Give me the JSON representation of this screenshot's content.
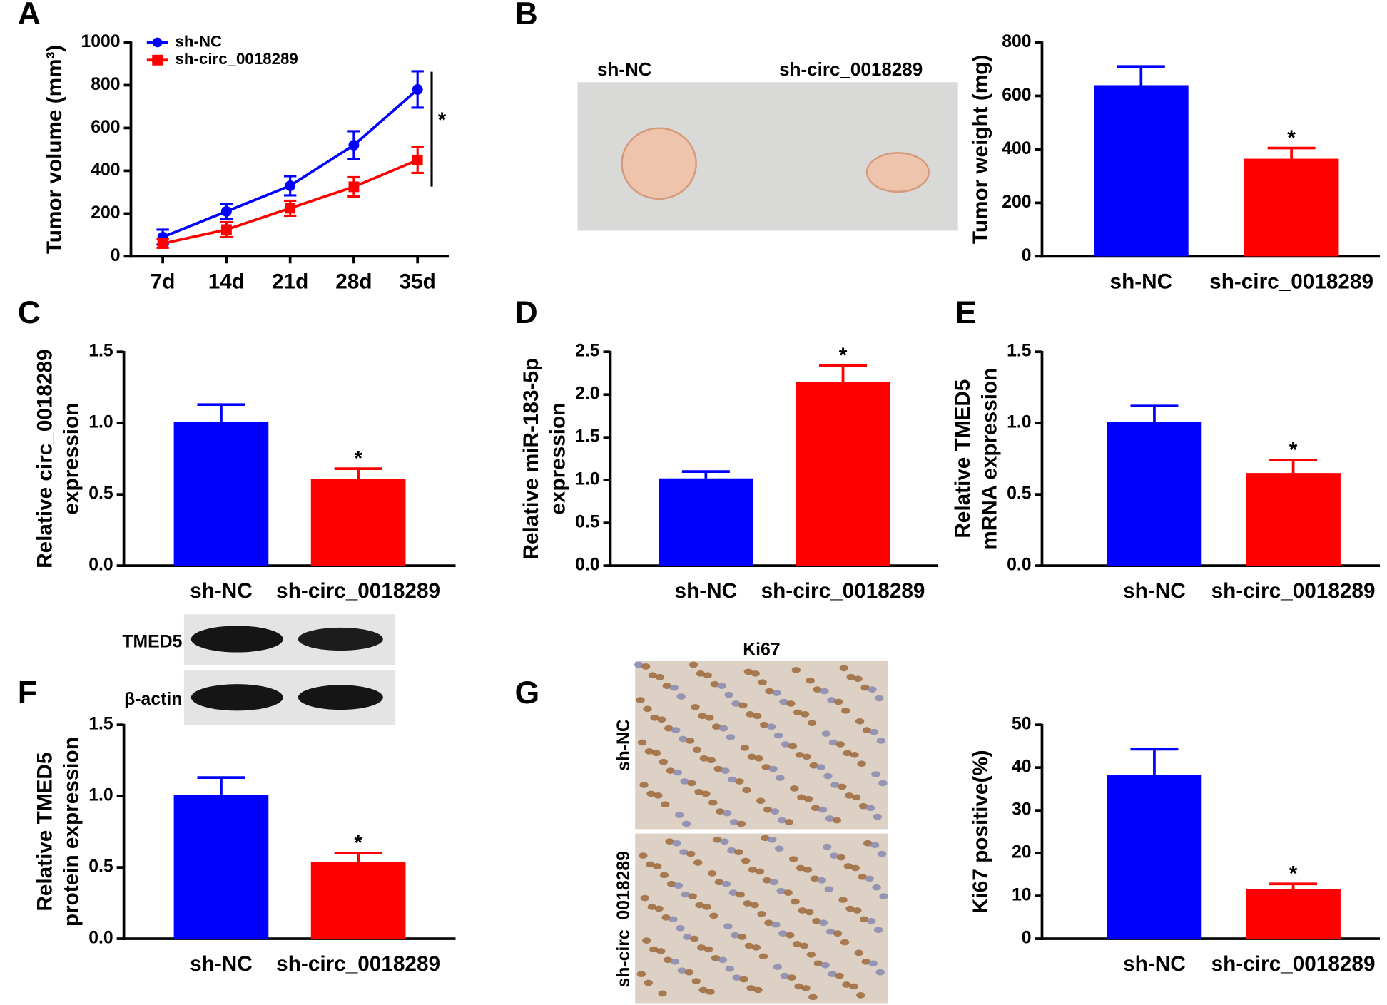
{
  "chart_data": [
    {
      "panel_label": "A",
      "type": "line",
      "ylabel": "Tumor volume (mm³)",
      "categories": [
        "7d",
        "14d",
        "21d",
        "28d",
        "35d"
      ],
      "series": [
        {
          "name": "sh-NC",
          "color": "#0000ff",
          "values": [
            90,
            210,
            330,
            520,
            780
          ],
          "errors": [
            35,
            35,
            45,
            65,
            85
          ]
        },
        {
          "name": "sh-circ_0018289",
          "color": "#ff0000",
          "values": [
            60,
            125,
            225,
            325,
            450
          ],
          "errors": [
            20,
            35,
            35,
            45,
            60
          ]
        }
      ],
      "ylim": [
        0,
        1000
      ],
      "yticks": [
        0,
        200,
        400,
        600,
        800,
        1000
      ],
      "annotation": "*",
      "legend": "top-left"
    },
    {
      "panel_label": "B",
      "type": "bar",
      "ylabel": "Tumor weight (mg)",
      "image_labels": [
        "sh-NC",
        "sh-circ_0018289"
      ],
      "categories": [
        "sh-NC",
        "sh-circ_0018289"
      ],
      "values": [
        640,
        365
      ],
      "errors": [
        70,
        40
      ],
      "colors": [
        "#0000ff",
        "#ff0000"
      ],
      "significance": [
        null,
        "*"
      ],
      "ylim": [
        0,
        800
      ],
      "yticks": [
        0,
        200,
        400,
        600,
        800
      ]
    },
    {
      "panel_label": "C",
      "type": "bar",
      "ylabel": [
        "Relative circ_0018289",
        "expression"
      ],
      "categories": [
        "sh-NC",
        "sh-circ_0018289"
      ],
      "values": [
        1.01,
        0.61
      ],
      "errors": [
        0.12,
        0.07
      ],
      "colors": [
        "#0000ff",
        "#ff0000"
      ],
      "significance": [
        null,
        "*"
      ],
      "ylim": [
        0,
        1.5
      ],
      "yticks": [
        {
          "value": 0,
          "label": "0.0"
        },
        {
          "value": 0.5,
          "label": "0.5"
        },
        {
          "value": 1,
          "label": "1.0"
        },
        {
          "value": 1.5,
          "label": "1.5"
        }
      ]
    },
    {
      "panel_label": "D",
      "type": "bar",
      "ylabel": [
        "Relative miR-183-5p",
        "expression"
      ],
      "categories": [
        "sh-NC",
        "sh-circ_0018289"
      ],
      "values": [
        1.02,
        2.15
      ],
      "errors": [
        0.08,
        0.19
      ],
      "colors": [
        "#0000ff",
        "#ff0000"
      ],
      "significance": [
        null,
        "*"
      ],
      "ylim": [
        0,
        2.5
      ],
      "yticks": [
        {
          "value": 0,
          "label": "0.0"
        },
        {
          "value": 0.5,
          "label": "0.5"
        },
        {
          "value": 1,
          "label": "1.0"
        },
        {
          "value": 1.5,
          "label": "1.5"
        },
        {
          "value": 2,
          "label": "2.0"
        },
        {
          "value": 2.5,
          "label": "2.5"
        }
      ]
    },
    {
      "panel_label": "E",
      "type": "bar",
      "ylabel": [
        "Relative TMED5",
        "mRNA expression"
      ],
      "categories": [
        "sh-NC",
        "sh-circ_0018289"
      ],
      "values": [
        1.01,
        0.65
      ],
      "errors": [
        0.11,
        0.09
      ],
      "colors": [
        "#0000ff",
        "#ff0000"
      ],
      "significance": [
        null,
        "*"
      ],
      "ylim": [
        0,
        1.5
      ],
      "yticks": [
        {
          "value": 0,
          "label": "0.0"
        },
        {
          "value": 0.5,
          "label": "0.5"
        },
        {
          "value": 1,
          "label": "1.0"
        },
        {
          "value": 1.5,
          "label": "1.5"
        }
      ]
    },
    {
      "panel_label": "F",
      "type": "bar",
      "ylabel": [
        "Relative TMED5",
        "protein expression"
      ],
      "blot_labels": [
        "TMED5",
        "β-actin"
      ],
      "categories": [
        "sh-NC",
        "sh-circ_0018289"
      ],
      "values": [
        1.01,
        0.54
      ],
      "errors": [
        0.12,
        0.06
      ],
      "colors": [
        "#0000ff",
        "#ff0000"
      ],
      "significance": [
        null,
        "*"
      ],
      "ylim": [
        0,
        1.5
      ],
      "yticks": [
        {
          "value": 0,
          "label": "0.0"
        },
        {
          "value": 0.5,
          "label": "0.5"
        },
        {
          "value": 1,
          "label": "1.0"
        },
        {
          "value": 1.5,
          "label": "1.5"
        }
      ]
    },
    {
      "panel_label": "G",
      "type": "bar",
      "ylabel": "Ki67 positive(%)",
      "image_title": "Ki67",
      "image_labels": [
        "sh-NC",
        "sh-circ_0018289"
      ],
      "categories": [
        "sh-NC",
        "sh-circ_0018289"
      ],
      "values": [
        38.3,
        11.6
      ],
      "errors": [
        6,
        1.2
      ],
      "colors": [
        "#0000ff",
        "#ff0000"
      ],
      "significance": [
        null,
        "*"
      ],
      "ylim": [
        0,
        50
      ],
      "yticks": [
        0,
        10,
        20,
        30,
        40,
        50
      ]
    }
  ]
}
